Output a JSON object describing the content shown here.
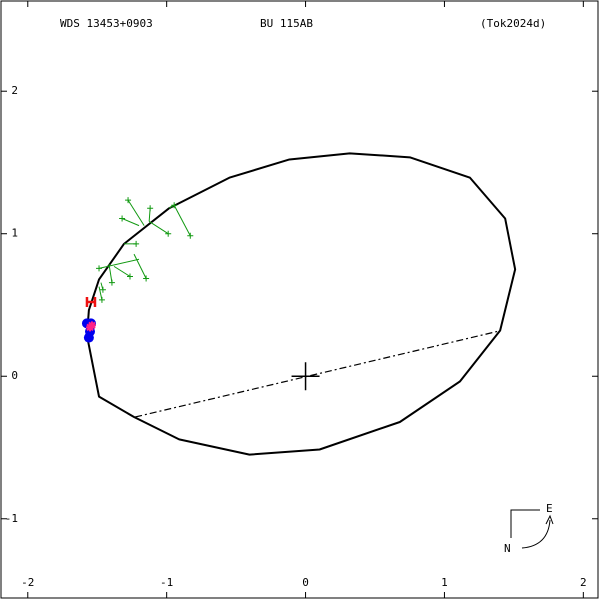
{
  "chart_data": {
    "type": "orbit",
    "header": {
      "left": "WDS 13453+0903",
      "center": "BU  115AB",
      "right": "(Tok2024d)"
    },
    "compass": {
      "e": "E",
      "n": "N"
    },
    "xlim": [
      -2.2,
      2.12
    ],
    "ylim": [
      -1.57,
      2.64
    ],
    "xticks": [
      -2,
      -1,
      0,
      1,
      2
    ],
    "yticks": [
      -1,
      0,
      1,
      2
    ],
    "orbit": {
      "color": "#000000",
      "x": [
        -1.574,
        -1.487,
        -1.235,
        -0.91,
        -0.404,
        0.101,
        0.679,
        1.112,
        1.401,
        1.509,
        1.437,
        1.184,
        0.751,
        0.318,
        -0.116,
        -0.549,
        -0.982,
        -1.307,
        -1.487,
        -1.56,
        -1.574
      ],
      "y": [
        0.286,
        -0.143,
        -0.286,
        -0.443,
        -0.55,
        -0.514,
        -0.321,
        -0.036,
        0.321,
        0.75,
        1.107,
        1.393,
        1.536,
        1.564,
        1.521,
        1.393,
        1.179,
        0.929,
        0.679,
        0.464,
        0.286
      ]
    },
    "node_line": {
      "color": "#000000",
      "x": [
        -1.227,
        1.379
      ],
      "y": [
        -0.286,
        0.314
      ]
    },
    "center": {
      "x": 0,
      "y": 0
    },
    "observations": {
      "color": "#119911",
      "x": [
        -1.278,
        -1.119,
        -1.321,
        -0.946,
        -0.83,
        -0.989,
        -1.22,
        -1.148,
        -1.264,
        -1.487,
        -1.394,
        -1.466,
        -1.459
      ],
      "y": [
        1.236,
        1.179,
        1.107,
        1.2,
        0.986,
        1.0,
        0.929,
        0.686,
        0.7,
        0.757,
        0.657,
        0.536,
        0.607
      ],
      "fit_x": [
        -1.162,
        -1.126,
        -1.199,
        -0.982,
        -0.946,
        -1.126,
        -1.307,
        -1.235,
        -1.379,
        -1.199,
        -1.415,
        -1.487,
        -1.473
      ],
      "fit_y": [
        1.057,
        1.086,
        1.057,
        1.179,
        1.2,
        1.086,
        0.929,
        0.857,
        0.771,
        0.821,
        0.786,
        0.629,
        0.657
      ]
    },
    "interferometric": {
      "color": "#0000ee",
      "x": [
        -1.574,
        -1.545,
        -1.56,
        -1.552
      ],
      "y": [
        0.371,
        0.371,
        0.271,
        0.314
      ]
    },
    "recent": {
      "color": "#ee1111",
      "x": [
        -1.545
      ],
      "y": [
        0.521
      ]
    },
    "speckle": {
      "color": "#ff2288",
      "x": [
        -1.552,
        -1.538
      ],
      "y": [
        0.343,
        0.357
      ]
    }
  }
}
